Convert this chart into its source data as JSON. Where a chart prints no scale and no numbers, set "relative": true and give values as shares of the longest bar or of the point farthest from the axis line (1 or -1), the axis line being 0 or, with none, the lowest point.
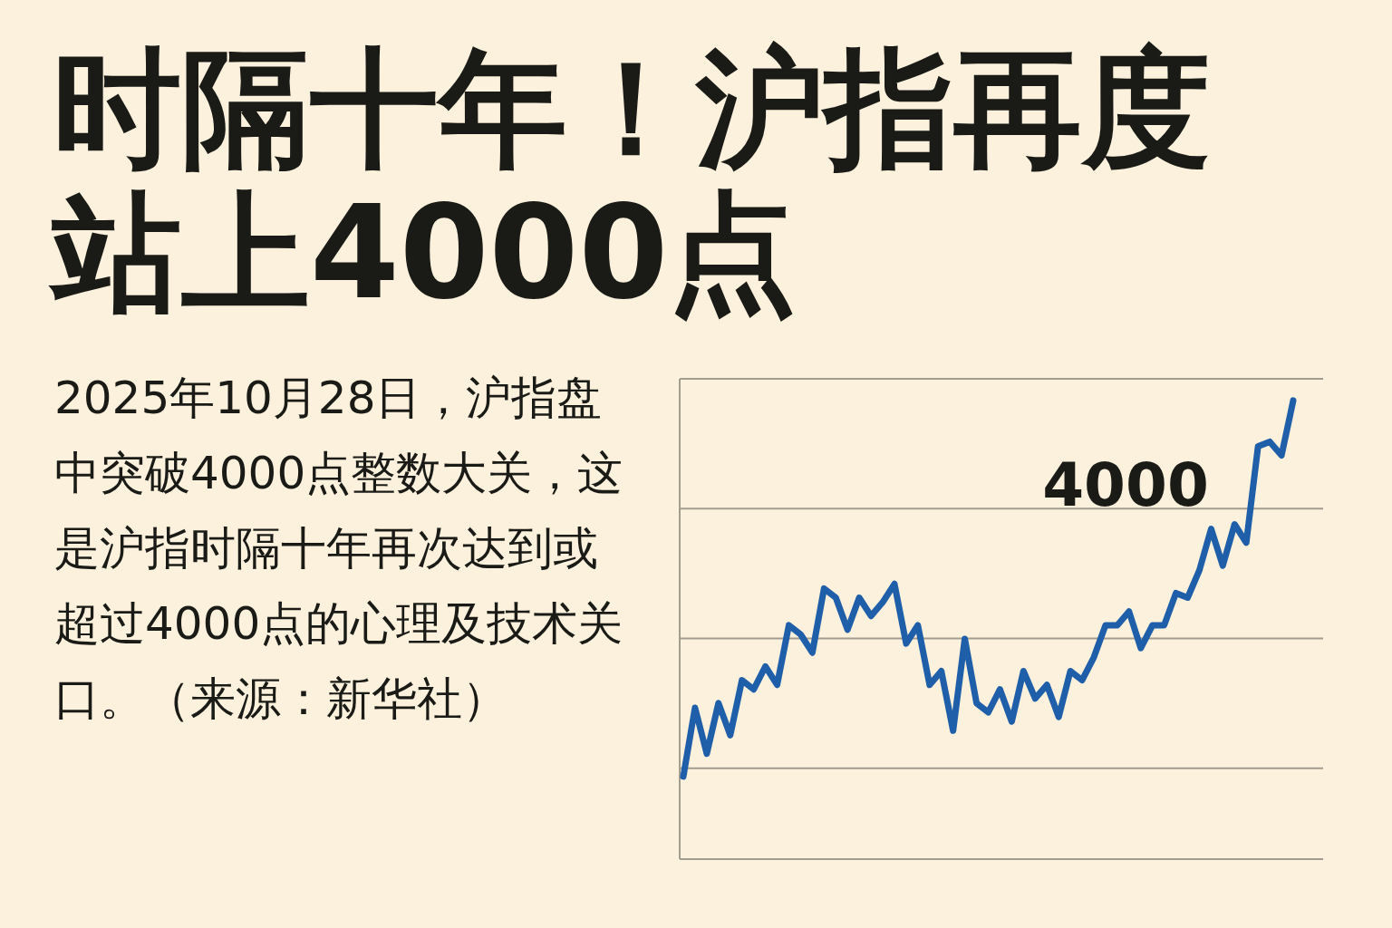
{
  "chart_data": {
    "type": "line",
    "title": "时隔十年！沪指再度站上4000点",
    "annotations": [
      "2025年10月28日，沪指盘中突破4000点整数大关，这是沪指时隔十年再次达到或超过4000点的心理及技术关口。（来源：新华社）",
      "4000"
    ],
    "relative": true,
    "grid": "y",
    "categories": [
      null,
      null,
      null,
      null,
      null,
      null,
      null,
      null,
      null,
      null,
      null,
      null,
      null,
      null,
      null,
      null,
      null,
      null,
      null,
      null,
      null,
      null,
      null,
      null,
      null,
      null,
      null,
      null,
      null,
      null,
      null,
      null,
      null,
      null,
      null,
      null,
      null,
      null,
      null,
      null,
      null,
      null,
      null,
      null,
      null,
      null,
      null,
      null,
      null,
      null,
      null,
      null,
      null
    ],
    "series": [
      {
        "color": "#1f5ea8",
        "values": [
          0.18,
          0.33,
          0.23,
          0.34,
          0.27,
          0.39,
          0.37,
          0.42,
          0.38,
          0.51,
          0.49,
          0.45,
          0.59,
          0.57,
          0.5,
          0.57,
          0.53,
          0.56,
          0.6,
          0.47,
          0.51,
          0.38,
          0.41,
          0.28,
          0.48,
          0.34,
          0.32,
          0.37,
          0.3,
          0.41,
          0.35,
          0.38,
          0.31,
          0.41,
          0.39,
          0.44,
          0.51,
          0.51,
          0.54,
          0.46,
          0.51,
          0.51,
          0.58,
          0.57,
          0.63,
          0.72,
          0.64,
          0.73,
          0.69,
          0.9,
          0.91,
          0.88,
          1
        ]
      }
    ]
  }
}
